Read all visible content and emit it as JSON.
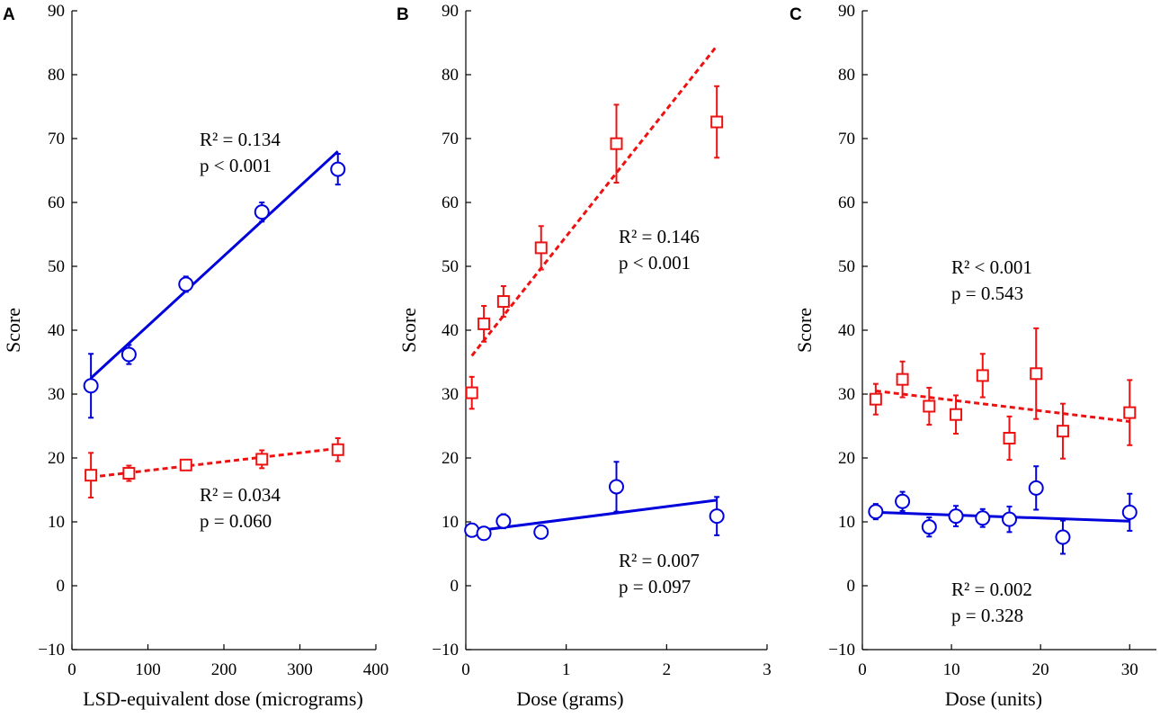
{
  "chart_data": [
    {
      "panel": "A",
      "type": "scatter",
      "xlabel": "LSD-equivalent dose (micrograms)",
      "ylabel": "Score",
      "xlim": [
        0,
        400
      ],
      "ylim": [
        -10,
        90
      ],
      "xticks": [
        0,
        100,
        200,
        300,
        400
      ],
      "xtick_labels": [
        "0",
        "100",
        "200",
        "300",
        "400"
      ],
      "yticks": [
        -10,
        0,
        10,
        20,
        30,
        40,
        50,
        60,
        70,
        80,
        90
      ],
      "ytick_labels": [
        "−10",
        "0",
        "10",
        "20",
        "30",
        "40",
        "50",
        "60",
        "70",
        "80",
        "90"
      ],
      "series": [
        {
          "name": "blue",
          "color": "#0000dd",
          "marker": "circle",
          "line_style": "solid",
          "x": [
            25,
            75,
            150,
            250,
            350
          ],
          "y": [
            31.3,
            36.2,
            47.2,
            58.5,
            65.2
          ],
          "err": [
            5.0,
            1.5,
            1.2,
            1.5,
            2.4
          ],
          "fit": [
            [
              25,
              32.5
            ],
            [
              350,
              68.0
            ]
          ],
          "annotation": {
            "r2_label": "R² = 0.134",
            "p_label": "p < 0.001"
          }
        },
        {
          "name": "red",
          "color": "#ee1111",
          "marker": "square",
          "line_style": "dashed",
          "x": [
            25,
            75,
            150,
            250,
            350
          ],
          "y": [
            17.3,
            17.6,
            18.9,
            19.8,
            21.3
          ],
          "err": [
            3.5,
            1.2,
            0.7,
            1.4,
            1.8
          ],
          "fit": [
            [
              25,
              17.0
            ],
            [
              350,
              21.5
            ]
          ],
          "annotation": {
            "r2_label": "R² = 0.034",
            "p_label": "p = 0.060"
          }
        }
      ]
    },
    {
      "panel": "B",
      "type": "scatter",
      "xlabel": "Dose (grams)",
      "ylabel": "Score",
      "xlim": [
        0,
        3
      ],
      "ylim": [
        -10,
        90
      ],
      "xticks": [
        0,
        1,
        2,
        3
      ],
      "xtick_labels": [
        "0",
        "1",
        "2",
        "3"
      ],
      "yticks": [
        -10,
        0,
        10,
        20,
        30,
        40,
        50,
        60,
        70,
        80,
        90
      ],
      "ytick_labels": [
        "−10",
        "0",
        "10",
        "20",
        "30",
        "40",
        "50",
        "60",
        "70",
        "80",
        "90"
      ],
      "series": [
        {
          "name": "red",
          "color": "#ee1111",
          "marker": "square",
          "line_style": "dashed",
          "x": [
            0.06,
            0.18,
            0.375,
            0.75,
            1.5,
            2.5
          ],
          "y": [
            30.2,
            41.0,
            44.5,
            52.9,
            69.2,
            72.6
          ],
          "err": [
            2.5,
            2.8,
            2.4,
            3.4,
            6.1,
            5.6
          ],
          "fit": [
            [
              0.06,
              36.0
            ],
            [
              2.5,
              84.5
            ]
          ],
          "annotation": {
            "r2_label": "R² = 0.146",
            "p_label": "p < 0.001"
          }
        },
        {
          "name": "blue",
          "color": "#0000dd",
          "marker": "circle",
          "line_style": "solid",
          "x": [
            0.06,
            0.18,
            0.375,
            0.75,
            1.5,
            2.5
          ],
          "y": [
            8.7,
            8.2,
            10.1,
            8.4,
            15.5,
            10.9
          ],
          "err": [
            1.0,
            1.0,
            1.1,
            1.0,
            3.9,
            3.0
          ],
          "fit": [
            [
              0.06,
              8.5
            ],
            [
              2.5,
              13.4
            ]
          ],
          "annotation": {
            "r2_label": "R² = 0.007",
            "p_label": "p = 0.097"
          }
        }
      ]
    },
    {
      "panel": "C",
      "type": "scatter",
      "xlabel": "Dose (units)",
      "ylabel": "Score",
      "xlim": [
        0,
        33
      ],
      "ylim": [
        -10,
        90
      ],
      "xticks": [
        0,
        10,
        20,
        30
      ],
      "xtick_labels": [
        "0",
        "10",
        "20",
        "30"
      ],
      "yticks": [
        -10,
        0,
        10,
        20,
        30,
        40,
        50,
        60,
        70,
        80,
        90
      ],
      "ytick_labels": [
        "−10",
        "0",
        "10",
        "20",
        "30",
        "40",
        "50",
        "60",
        "70",
        "80",
        "90"
      ],
      "series": [
        {
          "name": "red",
          "color": "#ee1111",
          "marker": "square",
          "line_style": "dashed",
          "x": [
            1.5,
            4.5,
            7.5,
            10.5,
            13.5,
            16.5,
            19.5,
            22.5,
            30
          ],
          "y": [
            29.2,
            32.3,
            28.1,
            26.8,
            32.9,
            23.1,
            33.2,
            24.2,
            27.1
          ],
          "err": [
            2.4,
            2.8,
            2.9,
            3.0,
            3.4,
            3.4,
            7.1,
            4.3,
            5.1
          ],
          "fit": [
            [
              1.5,
              30.5
            ],
            [
              30,
              25.7
            ]
          ],
          "annotation": {
            "r2_label": "R² < 0.001",
            "p_label": "p = 0.543"
          }
        },
        {
          "name": "blue",
          "color": "#0000dd",
          "marker": "circle",
          "line_style": "solid",
          "x": [
            1.5,
            4.5,
            7.5,
            10.5,
            13.5,
            16.5,
            19.5,
            22.5,
            30
          ],
          "y": [
            11.6,
            13.2,
            9.2,
            10.9,
            10.6,
            10.4,
            15.3,
            7.6,
            11.5
          ],
          "err": [
            1.2,
            1.5,
            1.5,
            1.6,
            1.4,
            2.0,
            3.4,
            2.6,
            2.9
          ],
          "fit": [
            [
              1.5,
              11.5
            ],
            [
              30,
              10.1
            ]
          ],
          "annotation": {
            "r2_label": "R² = 0.002",
            "p_label": "p = 0.328"
          }
        }
      ]
    }
  ]
}
